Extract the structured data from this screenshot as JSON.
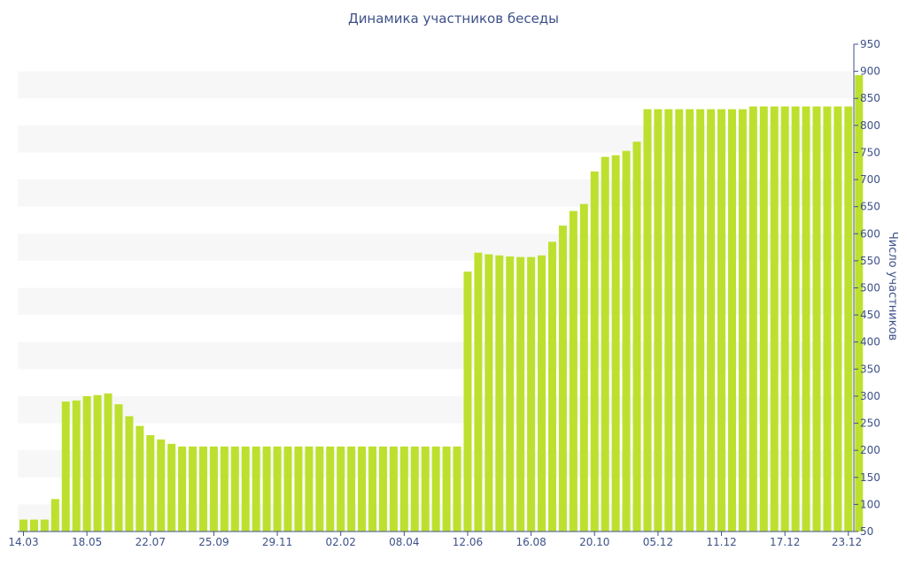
{
  "chart_data": {
    "type": "bar",
    "title": "Динамика участников беседы",
    "ylabel": "Число участников",
    "xlabel": "",
    "ylim": [
      50,
      950
    ],
    "yticks": [
      50,
      100,
      150,
      200,
      250,
      300,
      350,
      400,
      450,
      500,
      550,
      600,
      650,
      700,
      750,
      800,
      850,
      900,
      950
    ],
    "x_tick_labels": [
      "14.03",
      "18.05",
      "22.07",
      "25.09",
      "29.11",
      "02.02",
      "08.04",
      "12.06",
      "16.08",
      "20.10",
      "05.12",
      "11.12",
      "17.12",
      "23.12"
    ],
    "x_tick_bar_index": [
      0,
      6,
      12,
      18,
      24,
      30,
      36,
      42,
      48,
      54,
      60,
      66,
      72,
      78
    ],
    "grid": "horizontal-bands",
    "colors": {
      "bar": "#bde02f",
      "band": "#f7f7f7",
      "text": "#3d5189",
      "axis": "#3d5189"
    },
    "values": [
      72,
      72,
      72,
      110,
      290,
      292,
      300,
      302,
      305,
      285,
      263,
      245,
      228,
      220,
      212,
      207,
      207,
      207,
      207,
      207,
      207,
      207,
      207,
      207,
      207,
      207,
      207,
      207,
      207,
      207,
      207,
      207,
      207,
      207,
      207,
      207,
      207,
      207,
      207,
      207,
      207,
      207,
      530,
      565,
      562,
      560,
      558,
      557,
      557,
      560,
      585,
      615,
      642,
      655,
      715,
      742,
      745,
      753,
      770,
      830,
      830,
      830,
      830,
      830,
      830,
      830,
      830,
      830,
      830,
      835,
      835,
      835,
      835,
      835,
      835,
      835,
      835,
      835,
      835,
      893
    ]
  }
}
